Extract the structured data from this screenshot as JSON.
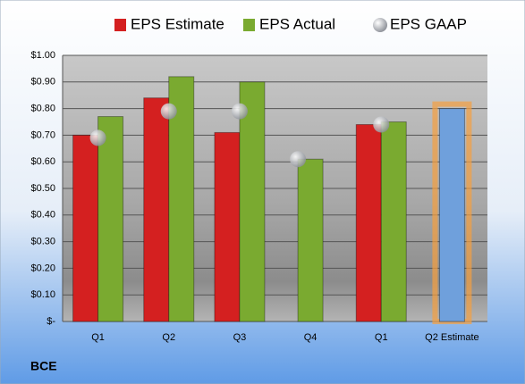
{
  "chart_data": {
    "type": "bar",
    "categories": [
      "Q1",
      "Q2",
      "Q3",
      "Q4",
      "Q1",
      "Q2 Estimate"
    ],
    "series": [
      {
        "name": "EPS Estimate",
        "color": "#d42020",
        "values": [
          0.7,
          0.84,
          0.71,
          null,
          0.74,
          0.8
        ],
        "colors": [
          "#d42020",
          "#d42020",
          "#d42020",
          "#d42020",
          "#d42020",
          "#6fa0dc"
        ]
      },
      {
        "name": "EPS Actual",
        "color": "#7aaa30",
        "values": [
          0.77,
          0.92,
          0.9,
          0.61,
          0.75,
          null
        ]
      },
      {
        "name": "EPS GAAP",
        "color": "#b8bcc4",
        "marker": "circle",
        "values": [
          0.69,
          0.79,
          0.79,
          0.61,
          0.74,
          null
        ]
      }
    ],
    "ylim": [
      0,
      1
    ],
    "yticks": [
      {
        "value": 0,
        "label": "$-"
      },
      {
        "value": 0.1,
        "label": "$0.10"
      },
      {
        "value": 0.2,
        "label": "$0.20"
      },
      {
        "value": 0.3,
        "label": "$0.30"
      },
      {
        "value": 0.4,
        "label": "$0.40"
      },
      {
        "value": 0.5,
        "label": "$0.50"
      },
      {
        "value": 0.6,
        "label": "$0.60"
      },
      {
        "value": 0.7,
        "label": "$0.70"
      },
      {
        "value": 0.8,
        "label": "$0.80"
      },
      {
        "value": 0.9,
        "label": "$0.90"
      },
      {
        "value": 1,
        "label": "$1.00"
      }
    ],
    "grid": true,
    "legend": "top",
    "footer": "BCE"
  }
}
